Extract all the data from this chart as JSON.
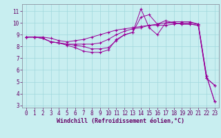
{
  "xlabel": "Windchill (Refroidissement éolien,°C)",
  "bg_color": "#c8eef0",
  "grid_color": "#a0d8dc",
  "line_color": "#990099",
  "xlim": [
    -0.5,
    23.5
  ],
  "ylim": [
    2.8,
    11.6
  ],
  "xticks": [
    0,
    1,
    2,
    3,
    4,
    5,
    6,
    7,
    8,
    9,
    10,
    11,
    12,
    13,
    14,
    15,
    16,
    17,
    18,
    19,
    20,
    21,
    22,
    23
  ],
  "yticks": [
    3,
    4,
    5,
    6,
    7,
    8,
    9,
    10,
    11
  ],
  "line1_x": [
    0,
    1,
    2,
    3,
    4,
    5,
    6,
    7,
    8,
    9,
    10,
    11,
    12,
    13,
    14,
    15,
    16,
    17,
    18,
    19,
    20,
    21,
    22,
    23
  ],
  "line1_y": [
    8.8,
    8.8,
    8.8,
    8.7,
    8.5,
    8.4,
    8.5,
    8.6,
    8.8,
    9.0,
    9.2,
    9.4,
    9.5,
    9.6,
    9.7,
    9.8,
    9.8,
    9.8,
    9.9,
    10.0,
    10.0,
    9.9,
    5.5,
    3.3
  ],
  "line2_x": [
    0,
    1,
    2,
    3,
    4,
    5,
    6,
    7,
    8,
    9,
    10,
    11,
    12,
    13,
    14,
    15,
    16,
    17,
    18,
    19,
    20,
    21,
    22,
    23
  ],
  "line2_y": [
    8.8,
    8.8,
    8.7,
    8.4,
    8.3,
    8.2,
    8.1,
    8.0,
    7.8,
    7.8,
    7.9,
    8.5,
    9.0,
    9.2,
    11.2,
    9.6,
    9.0,
    10.0,
    10.0,
    9.9,
    9.9,
    9.8,
    5.3,
    4.7
  ],
  "line3_x": [
    0,
    1,
    2,
    3,
    4,
    5,
    6,
    7,
    8,
    9,
    10,
    11,
    12,
    13,
    14,
    15,
    16,
    17,
    18,
    19,
    20,
    21,
    22,
    23
  ],
  "line3_y": [
    8.8,
    8.8,
    8.7,
    8.4,
    8.3,
    8.1,
    7.9,
    7.6,
    7.5,
    7.5,
    7.7,
    8.6,
    9.0,
    9.2,
    10.5,
    10.7,
    9.9,
    10.2,
    10.0,
    9.9,
    9.9,
    9.8,
    5.3,
    4.7
  ],
  "line4_x": [
    0,
    1,
    2,
    3,
    4,
    5,
    6,
    7,
    8,
    9,
    10,
    11,
    12,
    13,
    14,
    15,
    16,
    17,
    18,
    19,
    20,
    21,
    22,
    23
  ],
  "line4_y": [
    8.8,
    8.8,
    8.7,
    8.4,
    8.3,
    8.2,
    8.2,
    8.2,
    8.2,
    8.3,
    8.6,
    9.0,
    9.3,
    9.5,
    9.6,
    9.8,
    9.9,
    10.0,
    10.1,
    10.1,
    10.1,
    9.9,
    5.5,
    3.3
  ],
  "tick_fontsize": 5.5,
  "xlabel_fontsize": 6.0
}
